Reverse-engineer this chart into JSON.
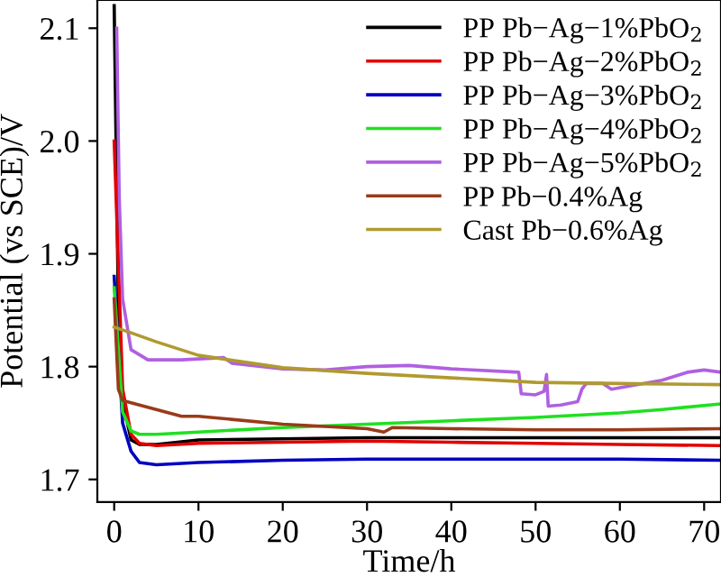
{
  "chart_data": {
    "type": "line",
    "xlabel": "Time/h",
    "ylabel": "Potential (vs SCE)/V",
    "xlim": [
      -2,
      72
    ],
    "ylim": [
      1.68,
      2.125
    ],
    "xticks": [
      0,
      10,
      20,
      30,
      40,
      50,
      60,
      70
    ],
    "yticks": [
      1.7,
      1.8,
      1.9,
      {
        "value": 2,
        "label": "2.0"
      },
      2.1
    ],
    "grid": false,
    "legend": "top right",
    "marker": "none",
    "line_style": "solid",
    "series": [
      {
        "name": "PP Pb−Ag−1%PbO$_{2}$",
        "color": "#000000",
        "x": [
          0,
          0.5,
          1,
          2,
          3,
          5,
          10,
          20,
          30,
          40,
          50,
          60,
          72
        ],
        "values": [
          2.12,
          1.85,
          1.77,
          1.735,
          1.731,
          1.731,
          1.735,
          1.736,
          1.737,
          1.737,
          1.737,
          1.737,
          1.737
        ]
      },
      {
        "name": "PP Pb−Ag−2%PbO$_{2}$",
        "color": "#e00000",
        "x": [
          0,
          1,
          2,
          3,
          5,
          10,
          20,
          30,
          40,
          50,
          60,
          72
        ],
        "values": [
          2.0,
          1.78,
          1.74,
          1.732,
          1.73,
          1.732,
          1.733,
          1.734,
          1.733,
          1.732,
          1.731,
          1.73
        ]
      },
      {
        "name": "PP Pb−Ag−3%PbO$_{2}$",
        "color": "#0000c0",
        "x": [
          0,
          1,
          2,
          3,
          5,
          10,
          20,
          30,
          40,
          50,
          60,
          72
        ],
        "values": [
          1.88,
          1.75,
          1.725,
          1.715,
          1.713,
          1.715,
          1.717,
          1.718,
          1.718,
          1.718,
          1.718,
          1.717
        ]
      },
      {
        "name": "PP Pb−Ag−4%PbO$_{2}$",
        "color": "#20e020",
        "x": [
          0,
          1,
          2,
          3,
          5,
          10,
          20,
          30,
          40,
          50,
          60,
          65,
          72
        ],
        "values": [
          1.87,
          1.76,
          1.743,
          1.74,
          1.74,
          1.742,
          1.746,
          1.749,
          1.752,
          1.755,
          1.759,
          1.762,
          1.767
        ]
      },
      {
        "name": "PP Pb−Ag−5%PbO$_{2}$",
        "color": "#b060e0",
        "x": [
          0.3,
          0.6,
          1,
          2,
          4,
          8,
          13,
          14,
          20,
          25,
          30,
          35,
          40,
          48,
          48.3,
          50,
          51,
          51.3,
          51.5,
          53,
          55,
          55.5,
          56,
          58,
          59,
          62,
          65,
          68,
          70,
          72
        ],
        "values": [
          2.1,
          1.95,
          1.86,
          1.815,
          1.806,
          1.806,
          1.808,
          1.803,
          1.798,
          1.797,
          1.8,
          1.801,
          1.798,
          1.795,
          1.776,
          1.775,
          1.778,
          1.793,
          1.765,
          1.766,
          1.769,
          1.78,
          1.785,
          1.785,
          1.78,
          1.784,
          1.788,
          1.795,
          1.797,
          1.795
        ]
      },
      {
        "name": "PP Pb−0.4%Ag",
        "color": "#9a3a1a",
        "x": [
          0,
          0.5,
          1,
          5,
          8,
          10,
          20,
          30,
          32,
          33,
          40,
          50,
          60,
          72
        ],
        "values": [
          1.86,
          1.78,
          1.77,
          1.762,
          1.756,
          1.756,
          1.749,
          1.745,
          1.742,
          1.746,
          1.745,
          1.744,
          1.744,
          1.745
        ]
      },
      {
        "name": "Cast Pb−0.6%Ag",
        "color": "#b09a30",
        "x": [
          0,
          2,
          5,
          10,
          20,
          30,
          40,
          50,
          60,
          72
        ],
        "values": [
          1.835,
          1.83,
          1.822,
          1.81,
          1.799,
          1.794,
          1.79,
          1.786,
          1.785,
          1.784
        ]
      }
    ]
  }
}
